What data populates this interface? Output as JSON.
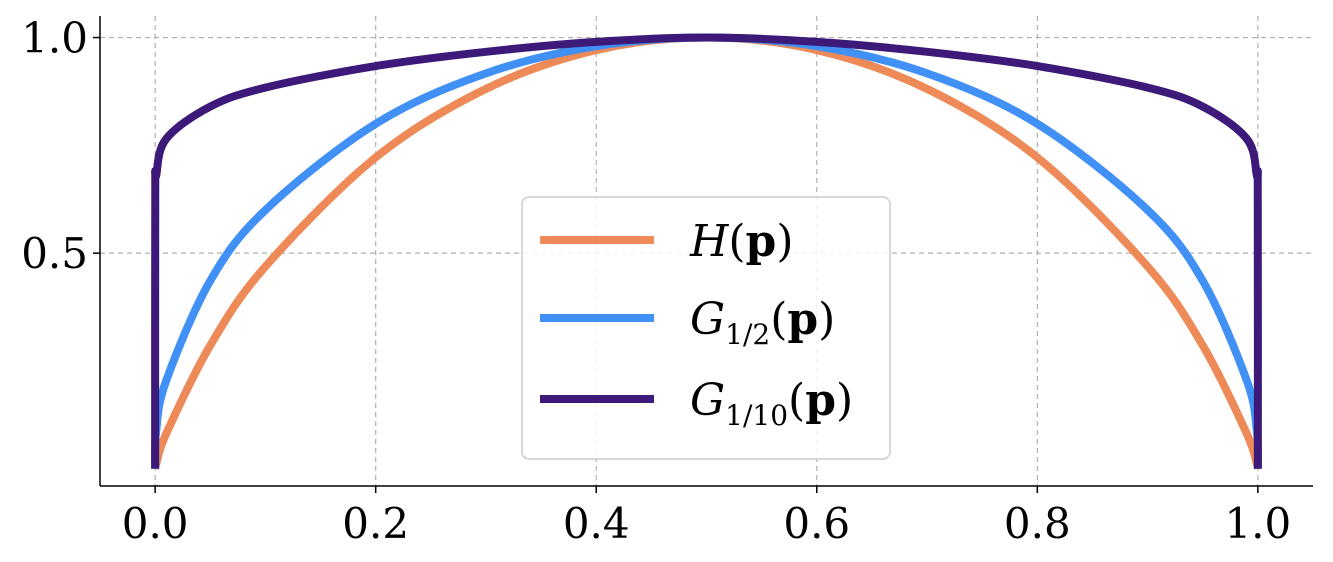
{
  "chart_data": {
    "type": "line",
    "title": "",
    "xlabel": "",
    "ylabel": "",
    "xlim": [
      -0.05,
      1.05
    ],
    "ylim": [
      -0.04,
      1.05
    ],
    "x_ticks": [
      0.0,
      0.2,
      0.4,
      0.6,
      0.8,
      1.0
    ],
    "x_tick_labels": [
      "0.0",
      "0.2",
      "0.4",
      "0.6",
      "0.8",
      "1.0"
    ],
    "y_ticks": [
      0.5,
      1.0
    ],
    "y_tick_labels": [
      "0.5",
      "1.0"
    ],
    "grid": true,
    "legend_position": "center-right",
    "series": [
      {
        "name": "H(p)",
        "legend_main": "H",
        "legend_sub": "",
        "legend_paren_open": "(",
        "legend_bold": "p",
        "legend_paren_close": ")",
        "color": "#EE8A57",
        "x": [
          0,
          0.001,
          0.01,
          0.05,
          0.1,
          0.2,
          0.3,
          0.4,
          0.5,
          0.6,
          0.7,
          0.8,
          0.9,
          0.95,
          0.99,
          0.999,
          1
        ],
        "y": [
          0,
          0.011,
          0.081,
          0.286,
          0.469,
          0.722,
          0.881,
          0.971,
          1.0,
          0.971,
          0.881,
          0.722,
          0.469,
          0.286,
          0.081,
          0.011,
          0
        ]
      },
      {
        "name": "G_{1/2}(p)",
        "legend_main": "G",
        "legend_sub": "1/2",
        "legend_paren_open": "(",
        "legend_bold": "p",
        "legend_paren_close": ")",
        "color": "#4090F5",
        "x": [
          0,
          0.001,
          0.01,
          0.05,
          0.1,
          0.2,
          0.3,
          0.4,
          0.5,
          0.6,
          0.7,
          0.8,
          0.9,
          0.95,
          0.99,
          0.999,
          1
        ],
        "y": [
          0,
          0.089,
          0.204,
          0.436,
          0.6,
          0.8,
          0.917,
          0.98,
          1.0,
          0.98,
          0.917,
          0.8,
          0.6,
          0.436,
          0.204,
          0.089,
          0
        ]
      },
      {
        "name": "G_{1/10}(p)",
        "legend_main": "G",
        "legend_sub": "1/10",
        "legend_paren_open": "(",
        "legend_bold": "p",
        "legend_paren_close": ")",
        "color": "#3D1A7A",
        "x": [
          0,
          0.0001,
          0.001,
          0.01,
          0.05,
          0.1,
          0.2,
          0.3,
          0.4,
          0.5,
          0.6,
          0.7,
          0.8,
          0.9,
          0.95,
          0.99,
          0.999,
          0.9999,
          1
        ],
        "y": [
          0,
          0.63,
          0.68,
          0.765,
          0.84,
          0.884,
          0.934,
          0.967,
          0.99,
          1.0,
          0.99,
          0.967,
          0.934,
          0.884,
          0.84,
          0.765,
          0.68,
          0.63,
          0
        ]
      }
    ]
  }
}
